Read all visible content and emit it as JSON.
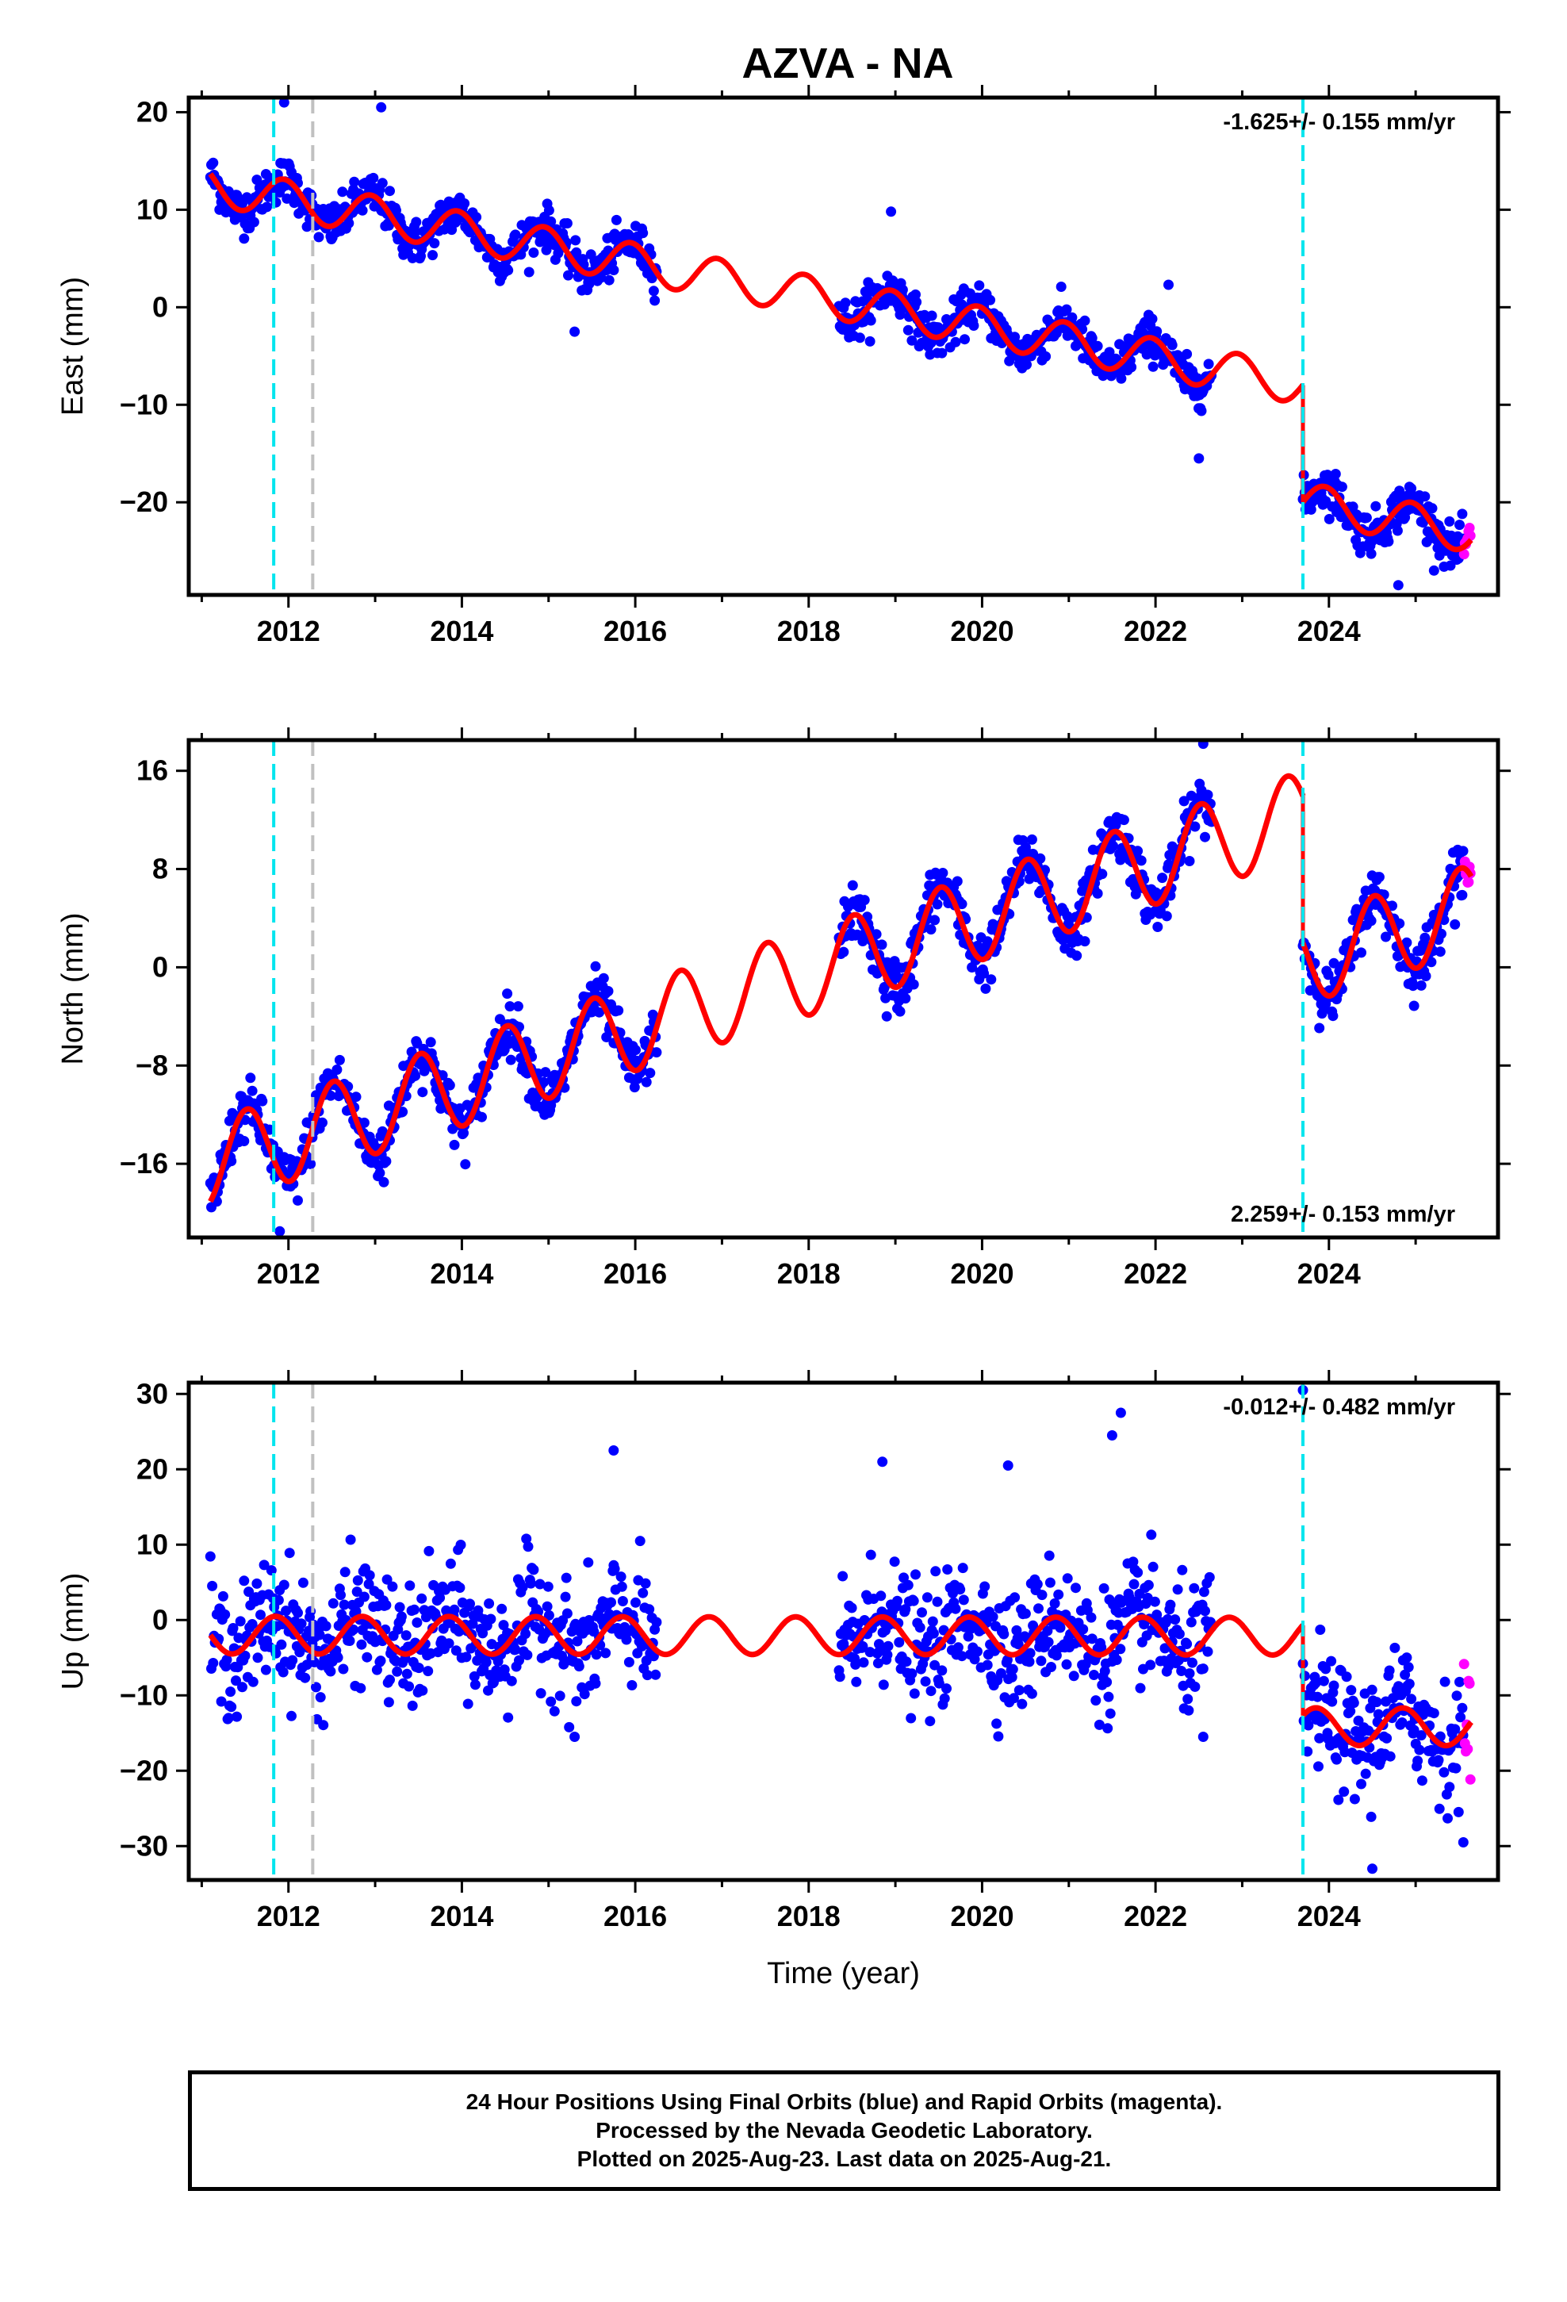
{
  "title": "AZVA - NA",
  "footer": {
    "line1": "24 Hour Positions Using Final Orbits (blue) and Rapid Orbits (magenta).",
    "line2": "Processed by the Nevada Geodetic Laboratory.",
    "line3": "Plotted on 2025-Aug-23. Last data on 2025-Aug-21."
  },
  "colors": {
    "final_orbits": "#0000ff",
    "rapid_orbits": "#ff00ff",
    "model_fit": "#ff0000",
    "equipment_change": "#00e5ee",
    "other_event": "#c0c0c0"
  },
  "chart_data": [
    {
      "type": "scatter",
      "component": "east",
      "ylabel": "East (mm)",
      "xlabel": "",
      "xlim": [
        2010.85,
        2025.95
      ],
      "ylim": [
        -29.5,
        21.5
      ],
      "xticks": [
        "2012",
        "2014",
        "2016",
        "2018",
        "2020",
        "2022",
        "2024"
      ],
      "yticks": [
        "20",
        "10",
        "0",
        "-10",
        "-20"
      ],
      "rate_text": "-1.625+/- 0.155 mm/yr",
      "rate_position": "top-right",
      "rate_mm_per_yr": -1.625,
      "annual_amplitude_mm": 2.0,
      "annual_peak_phase": 0.95,
      "offset_2023_7_mm": -12.0,
      "model_at_2011_1_mm": 12.5,
      "scatter_sigma_mm": 1.1,
      "data_segments": [
        [
          2011.1,
          2016.25
        ],
        [
          2018.35,
          2022.65
        ],
        [
          2023.7,
          2025.64
        ]
      ],
      "rapid_orbit_range": [
        2025.55,
        2025.64
      ],
      "events": [
        {
          "year": 2011.83,
          "kind": "equipment_change"
        },
        {
          "year": 2012.28,
          "kind": "other_event"
        },
        {
          "year": 2023.7,
          "kind": "equipment_change"
        }
      ],
      "outliers": [
        [
          2011.95,
          21.0
        ],
        [
          2013.07,
          20.5
        ],
        [
          2018.95,
          9.8
        ],
        [
          2022.15,
          2.3
        ],
        [
          2015.3,
          -2.5
        ],
        [
          2022.5,
          -15.5
        ],
        [
          2024.8,
          -28.5
        ]
      ]
    },
    {
      "type": "scatter",
      "component": "north",
      "ylabel": "North (mm)",
      "xlabel": "",
      "xlim": [
        2010.85,
        2025.95
      ],
      "ylim": [
        -22,
        18.5
      ],
      "xticks": [
        "2012",
        "2014",
        "2016",
        "2018",
        "2020",
        "2022",
        "2024"
      ],
      "yticks": [
        "16",
        "8",
        "0",
        "-8",
        "-16"
      ],
      "rate_text": "2.259+/- 0.153 mm/yr",
      "rate_position": "bottom-right",
      "rate_mm_per_yr": 2.259,
      "annual_amplitude_mm": 3.5,
      "annual_peak_phase": 0.52,
      "offset_2023_7_mm": -12.0,
      "model_at_2011_1_mm": -16.0,
      "scatter_sigma_mm": 1.1,
      "data_segments": [
        [
          2011.1,
          2016.25
        ],
        [
          2018.35,
          2022.65
        ],
        [
          2023.7,
          2025.64
        ]
      ],
      "rapid_orbit_range": [
        2025.55,
        2025.64
      ],
      "events": [
        {
          "year": 2011.83,
          "kind": "equipment_change"
        },
        {
          "year": 2012.28,
          "kind": "other_event"
        },
        {
          "year": 2023.7,
          "kind": "equipment_change"
        }
      ],
      "outliers": [
        [
          2011.9,
          -21.5
        ],
        [
          2013.1,
          -17.5
        ],
        [
          2022.55,
          18.2
        ],
        [
          2018.9,
          -4.0
        ]
      ]
    },
    {
      "type": "scatter",
      "component": "up",
      "ylabel": "Up (mm)",
      "xlabel": "Time (year)",
      "xlim": [
        2010.85,
        2025.95
      ],
      "ylim": [
        -34.5,
        31.5
      ],
      "xticks": [
        "2012",
        "2014",
        "2016",
        "2018",
        "2020",
        "2022",
        "2024"
      ],
      "yticks": [
        "30",
        "20",
        "10",
        "0",
        "-10",
        "-20",
        "-30"
      ],
      "rate_text": "-0.012+/- 0.482 mm/yr",
      "rate_position": "top-right",
      "rate_mm_per_yr": -0.012,
      "annual_amplitude_mm": 2.5,
      "annual_peak_phase": 0.85,
      "offset_2023_7_mm": -12.0,
      "model_at_2011_1_mm": -2.0,
      "scatter_sigma_mm": 4.0,
      "data_segments": [
        [
          2011.1,
          2016.25
        ],
        [
          2018.35,
          2022.65
        ],
        [
          2023.7,
          2025.64
        ]
      ],
      "rapid_orbit_range": [
        2025.55,
        2025.64
      ],
      "events": [
        {
          "year": 2011.83,
          "kind": "equipment_change"
        },
        {
          "year": 2012.28,
          "kind": "other_event"
        },
        {
          "year": 2023.7,
          "kind": "equipment_change"
        }
      ],
      "outliers": [
        [
          2021.6,
          27.5
        ],
        [
          2021.5,
          24.5
        ],
        [
          2015.75,
          22.5
        ],
        [
          2023.7,
          30.5
        ],
        [
          2024.5,
          -33.0
        ],
        [
          2025.55,
          -29.5
        ],
        [
          2015.3,
          -15.5
        ],
        [
          2022.55,
          -15.5
        ],
        [
          2020.3,
          20.5
        ],
        [
          2018.85,
          21.0
        ]
      ]
    }
  ]
}
